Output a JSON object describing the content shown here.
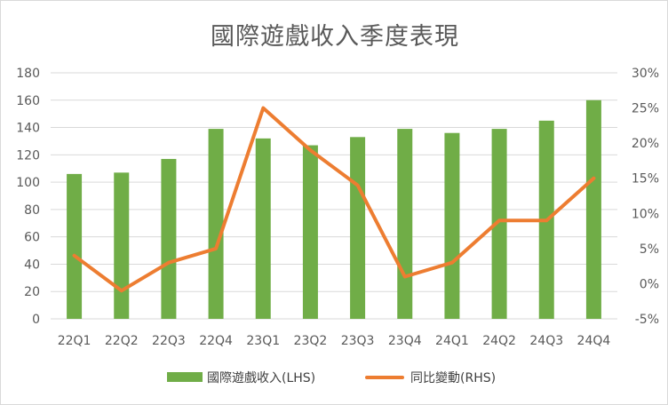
{
  "chart_data": {
    "type": "bar+line",
    "title": "國際遊戲收入季度表現",
    "categories": [
      "22Q1",
      "22Q2",
      "22Q3",
      "22Q4",
      "23Q1",
      "23Q2",
      "23Q3",
      "23Q4",
      "24Q1",
      "24Q2",
      "24Q3",
      "24Q4"
    ],
    "series": [
      {
        "name": "國際遊戲收入(LHS)",
        "type": "bar",
        "axis": "left",
        "color": "#70ad47",
        "values": [
          106,
          107,
          117,
          139,
          132,
          127,
          133,
          139,
          136,
          139,
          145,
          160
        ]
      },
      {
        "name": "同比變動(RHS)",
        "type": "line",
        "axis": "right",
        "color": "#ed7d31",
        "values": [
          4,
          -1,
          3,
          5,
          25,
          19,
          14,
          1,
          3,
          9,
          9,
          15
        ]
      }
    ],
    "left_axis": {
      "ylim": [
        0,
        180
      ],
      "ticks": [
        "0",
        "20",
        "40",
        "60",
        "80",
        "100",
        "120",
        "140",
        "160",
        "180"
      ]
    },
    "right_axis": {
      "ylim": [
        -5,
        30
      ],
      "ticks": [
        "-5%",
        "0%",
        "5%",
        "10%",
        "15%",
        "20%",
        "25%",
        "30%"
      ]
    },
    "grid": true,
    "legend_position": "bottom"
  }
}
